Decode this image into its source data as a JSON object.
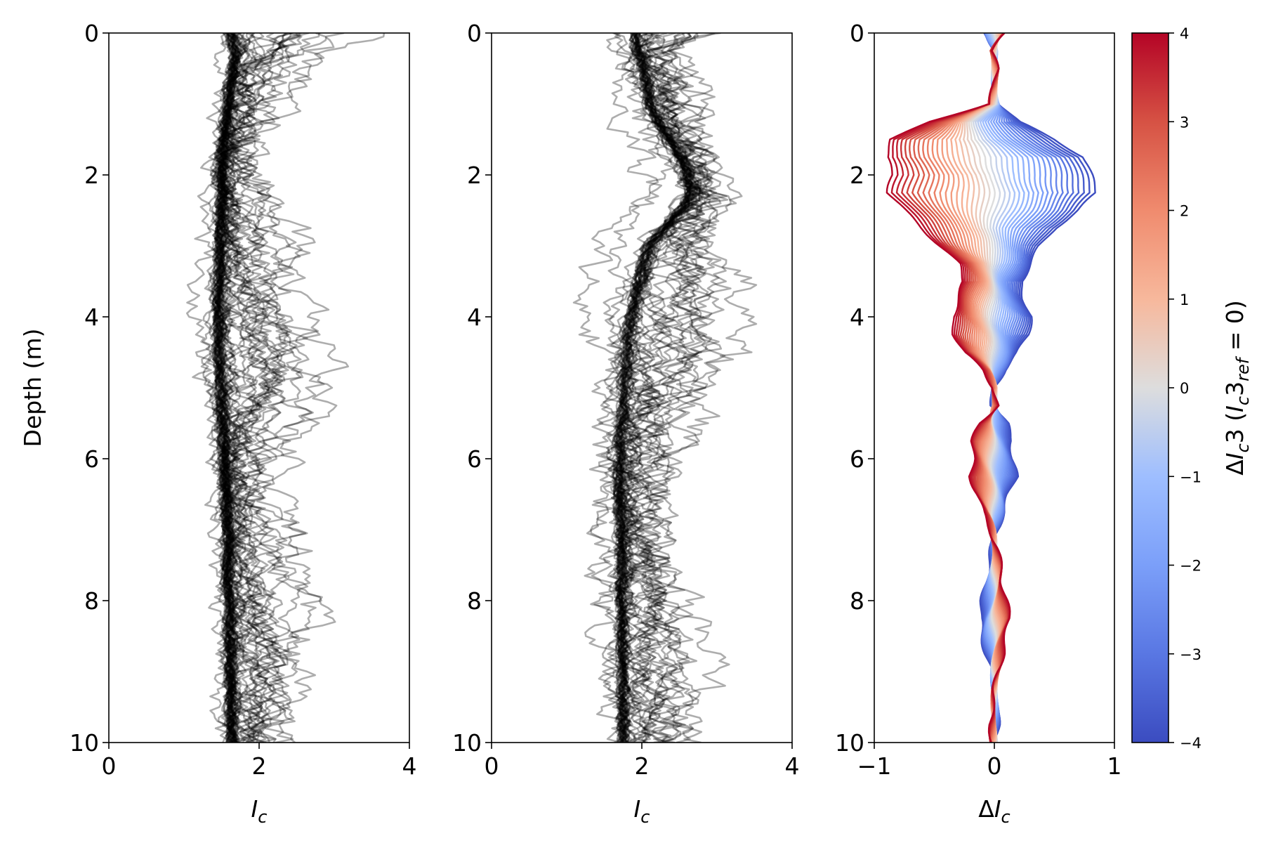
{
  "chart_data": [
    {
      "type": "line",
      "panel": "left",
      "xlabel": "I_c",
      "ylabel": "Depth (m)",
      "xlim": [
        0,
        4
      ],
      "ylim": [
        10,
        0
      ],
      "y_inverted": true,
      "xticks": [
        "0",
        "2",
        "4"
      ],
      "yticks": [
        "0",
        "2",
        "4",
        "6",
        "8",
        "10"
      ],
      "line_color": "#000000",
      "n_series": 60,
      "depth": [
        0,
        0.25,
        0.5,
        0.75,
        1,
        1.25,
        1.5,
        1.75,
        2,
        2.25,
        2.5,
        2.75,
        3,
        3.25,
        3.5,
        3.75,
        4,
        4.25,
        4.5,
        4.75,
        5,
        5.25,
        5.5,
        5.75,
        6,
        6.25,
        6.5,
        6.75,
        7,
        7.25,
        7.5,
        7.75,
        8,
        8.25,
        8.5,
        8.75,
        9,
        9.25,
        9.5,
        9.75,
        10
      ],
      "base_profile": [
        1.6,
        1.7,
        1.65,
        1.6,
        1.58,
        1.55,
        1.52,
        1.5,
        1.5,
        1.52,
        1.5,
        1.48,
        1.48,
        1.47,
        1.46,
        1.45,
        1.45,
        1.45,
        1.45,
        1.46,
        1.47,
        1.48,
        1.5,
        1.52,
        1.53,
        1.55,
        1.56,
        1.57,
        1.58,
        1.58,
        1.58,
        1.58,
        1.6,
        1.6,
        1.6,
        1.6,
        1.6,
        1.62,
        1.62,
        1.62,
        1.62
      ],
      "envelope_min": [
        0.9,
        1.1,
        1.2,
        1.15,
        1.1,
        1.05,
        1.1,
        1.0,
        0.95,
        0.9,
        0.85,
        0.9,
        0.95,
        0.9,
        0.8,
        0.85,
        0.8,
        0.85,
        0.8,
        0.8,
        0.8,
        0.75,
        0.8,
        0.85,
        0.9,
        0.95,
        1.0,
        1.05,
        1.1,
        1.1,
        1.1,
        1.15,
        1.15,
        1.15,
        1.15,
        1.2,
        1.2,
        1.2,
        1.2,
        1.2,
        1.2
      ],
      "envelope_max": [
        4.0,
        3.2,
        2.8,
        2.6,
        2.4,
        2.3,
        2.2,
        2.1,
        2.2,
        2.3,
        2.5,
        2.7,
        2.9,
        2.9,
        2.8,
        2.9,
        3.1,
        3.2,
        3.3,
        3.4,
        3.3,
        3.1,
        2.8,
        2.6,
        2.5,
        2.4,
        2.4,
        2.5,
        2.6,
        2.7,
        2.8,
        2.9,
        3.0,
        3.0,
        2.95,
        2.9,
        2.8,
        2.7,
        2.6,
        2.55,
        2.5
      ]
    },
    {
      "type": "line",
      "panel": "middle",
      "xlabel": "I_c",
      "ylabel": "",
      "xlim": [
        0,
        4
      ],
      "ylim": [
        10,
        0
      ],
      "y_inverted": true,
      "xticks": [
        "0",
        "2",
        "4"
      ],
      "yticks": [
        "0",
        "2",
        "4",
        "6",
        "8",
        "10"
      ],
      "line_color": "#000000",
      "n_series": 50,
      "depth": [
        0,
        0.25,
        0.5,
        0.75,
        1,
        1.25,
        1.5,
        1.75,
        2,
        2.25,
        2.5,
        2.75,
        3,
        3.25,
        3.5,
        3.75,
        4,
        4.25,
        4.5,
        4.75,
        5,
        5.25,
        5.5,
        5.75,
        6,
        6.25,
        6.5,
        6.75,
        7,
        7.25,
        7.5,
        7.75,
        8,
        8.25,
        8.5,
        8.75,
        9,
        9.25,
        9.5,
        9.75,
        10
      ],
      "base_profile": [
        1.9,
        1.95,
        2.0,
        2.05,
        2.1,
        2.2,
        2.35,
        2.5,
        2.6,
        2.65,
        2.5,
        2.3,
        2.1,
        2.0,
        1.95,
        1.9,
        1.85,
        1.8,
        1.8,
        1.78,
        1.76,
        1.75,
        1.72,
        1.7,
        1.7,
        1.7,
        1.7,
        1.7,
        1.72,
        1.72,
        1.72,
        1.72,
        1.72,
        1.72,
        1.72,
        1.72,
        1.74,
        1.74,
        1.74,
        1.74,
        1.74
      ],
      "envelope_min": [
        1.1,
        1.2,
        1.25,
        1.3,
        1.4,
        1.5,
        1.55,
        1.6,
        1.7,
        1.6,
        1.4,
        1.25,
        1.15,
        1.15,
        1.1,
        1.1,
        1.05,
        1.0,
        1.0,
        1.05,
        1.1,
        1.1,
        1.1,
        1.15,
        1.2,
        1.2,
        1.25,
        1.25,
        1.3,
        1.3,
        1.3,
        1.35,
        1.35,
        1.35,
        1.4,
        1.4,
        1.4,
        1.45,
        1.45,
        1.5,
        1.5
      ],
      "envelope_max": [
        3.4,
        2.6,
        2.8,
        2.9,
        3.0,
        3.0,
        2.95,
        2.95,
        3.0,
        3.1,
        3.1,
        3.1,
        3.1,
        3.2,
        3.3,
        3.3,
        3.4,
        3.4,
        3.5,
        3.3,
        3.2,
        3.1,
        3.0,
        2.8,
        2.6,
        2.5,
        2.45,
        2.4,
        2.4,
        2.4,
        2.5,
        2.6,
        2.7,
        2.75,
        2.8,
        2.85,
        2.9,
        3.0,
        3.0,
        3.0,
        3.0
      ]
    },
    {
      "type": "line",
      "panel": "right",
      "xlabel": "ΔI_c",
      "ylabel": "",
      "xlim": [
        -1,
        1
      ],
      "ylim": [
        10,
        0
      ],
      "y_inverted": true,
      "xticks": [
        "−1",
        "0",
        "1"
      ],
      "yticks": [
        "0",
        "2",
        "4",
        "6",
        "8",
        "10"
      ],
      "n_series": 41,
      "color_param_values": [
        -4,
        -3.8,
        -3.6,
        -3.4,
        -3.2,
        -3,
        -2.8,
        -2.6,
        -2.4,
        -2.2,
        -2,
        -1.8,
        -1.6,
        -1.4,
        -1.2,
        -1,
        -0.8,
        -0.6,
        -0.4,
        -0.2,
        0,
        0.2,
        0.4,
        0.6,
        0.8,
        1,
        1.2,
        1.4,
        1.6,
        1.8,
        2,
        2.2,
        2.4,
        2.6,
        2.8,
        3,
        3.2,
        3.4,
        3.6,
        3.8,
        4
      ],
      "depth": [
        0,
        0.25,
        0.5,
        0.75,
        1,
        1.25,
        1.5,
        1.75,
        2,
        2.25,
        2.5,
        2.75,
        3,
        3.25,
        3.5,
        3.75,
        4,
        4.25,
        4.5,
        4.75,
        5,
        5.25,
        5.5,
        5.75,
        6,
        6.25,
        6.5,
        6.75,
        7,
        7.25,
        7.5,
        7.75,
        8,
        8.25,
        8.5,
        8.75,
        9,
        9.25,
        9.5,
        9.75,
        10
      ],
      "delta_at_param_minus4": [
        -0.1,
        0.02,
        -0.02,
        0.0,
        0.05,
        0.2,
        0.5,
        0.75,
        0.8,
        0.85,
        0.7,
        0.5,
        0.38,
        0.3,
        0.22,
        0.25,
        0.3,
        0.28,
        0.2,
        0.08,
        0.0,
        -0.02,
        0.1,
        0.15,
        0.15,
        0.18,
        0.12,
        0.08,
        0.02,
        -0.02,
        -0.05,
        -0.07,
        -0.1,
        -0.12,
        -0.1,
        -0.07,
        -0.03,
        0.0,
        0.02,
        0.03,
        0.02
      ],
      "delta_at_param_plus4": [
        0.1,
        -0.02,
        0.02,
        0.0,
        -0.05,
        -0.55,
        -0.85,
        -0.9,
        -0.85,
        -0.88,
        -0.75,
        -0.6,
        -0.45,
        -0.3,
        -0.25,
        -0.3,
        -0.35,
        -0.33,
        -0.25,
        -0.1,
        0.0,
        0.02,
        -0.12,
        -0.18,
        -0.18,
        -0.2,
        -0.14,
        -0.1,
        -0.03,
        0.02,
        0.05,
        0.07,
        0.1,
        0.12,
        0.1,
        0.07,
        0.03,
        0.0,
        -0.02,
        -0.03,
        -0.02
      ]
    }
  ],
  "colorbar": {
    "label": "ΔI_c3 (I_c3_ref = 0)",
    "range": [
      -4,
      4
    ],
    "ticks": [
      "4",
      "3",
      "2",
      "1",
      "0",
      "−1",
      "−2",
      "−3",
      "−4"
    ],
    "colormap": "coolwarm",
    "color_low": "#3b4cc0",
    "color_mid": "#dddddd",
    "color_high": "#b40426"
  }
}
